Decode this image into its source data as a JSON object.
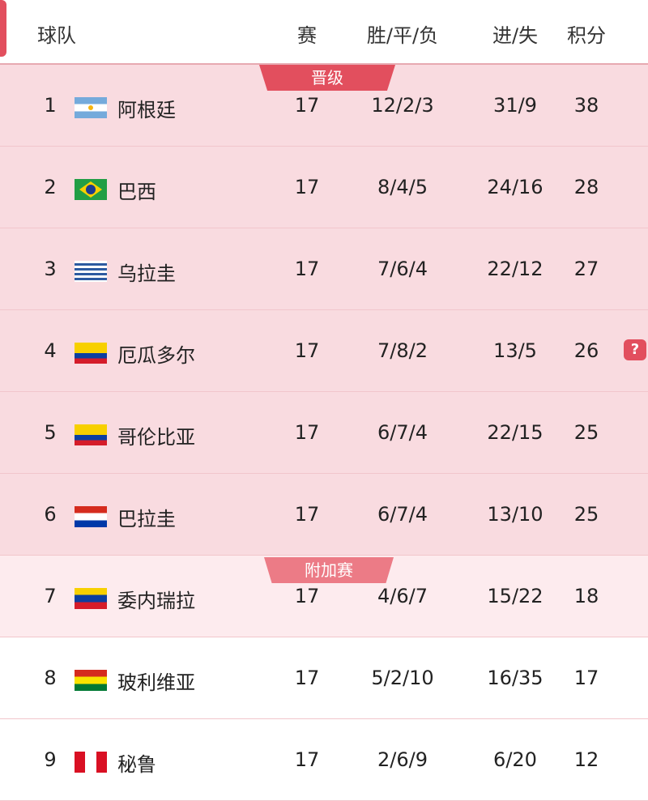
{
  "header": {
    "team": "球队",
    "played": "赛",
    "wdl": "胜/平/负",
    "goals": "进/失",
    "points": "积分"
  },
  "zones": {
    "qualify": "晋级",
    "playoff": "附加赛"
  },
  "colors": {
    "accent": "#e24f5e",
    "qualify_bg": "#f9dbe0",
    "playoff_bg": "#fdebee",
    "playoff_tag": "#ec7b86"
  },
  "help_icon": "?",
  "rows": [
    {
      "rank": "1",
      "team": "阿根廷",
      "flag": "argentina",
      "played": "17",
      "wdl": "12/2/3",
      "goals": "31/9",
      "points": "38"
    },
    {
      "rank": "2",
      "team": "巴西",
      "flag": "brazil",
      "played": "17",
      "wdl": "8/4/5",
      "goals": "24/16",
      "points": "28"
    },
    {
      "rank": "3",
      "team": "乌拉圭",
      "flag": "uruguay",
      "played": "17",
      "wdl": "7/6/4",
      "goals": "22/12",
      "points": "27"
    },
    {
      "rank": "4",
      "team": "厄瓜多尔",
      "flag": "ecuador",
      "played": "17",
      "wdl": "7/8/2",
      "goals": "13/5",
      "points": "26"
    },
    {
      "rank": "5",
      "team": "哥伦比亚",
      "flag": "colombia",
      "played": "17",
      "wdl": "6/7/4",
      "goals": "22/15",
      "points": "25"
    },
    {
      "rank": "6",
      "team": "巴拉圭",
      "flag": "paraguay",
      "played": "17",
      "wdl": "6/7/4",
      "goals": "13/10",
      "points": "25"
    },
    {
      "rank": "7",
      "team": "委内瑞拉",
      "flag": "venezuela",
      "played": "17",
      "wdl": "4/6/7",
      "goals": "15/22",
      "points": "18"
    },
    {
      "rank": "8",
      "team": "玻利维亚",
      "flag": "bolivia",
      "played": "17",
      "wdl": "5/2/10",
      "goals": "16/35",
      "points": "17"
    },
    {
      "rank": "9",
      "team": "秘鲁",
      "flag": "peru",
      "played": "17",
      "wdl": "2/6/9",
      "goals": "6/20",
      "points": "12"
    }
  ]
}
